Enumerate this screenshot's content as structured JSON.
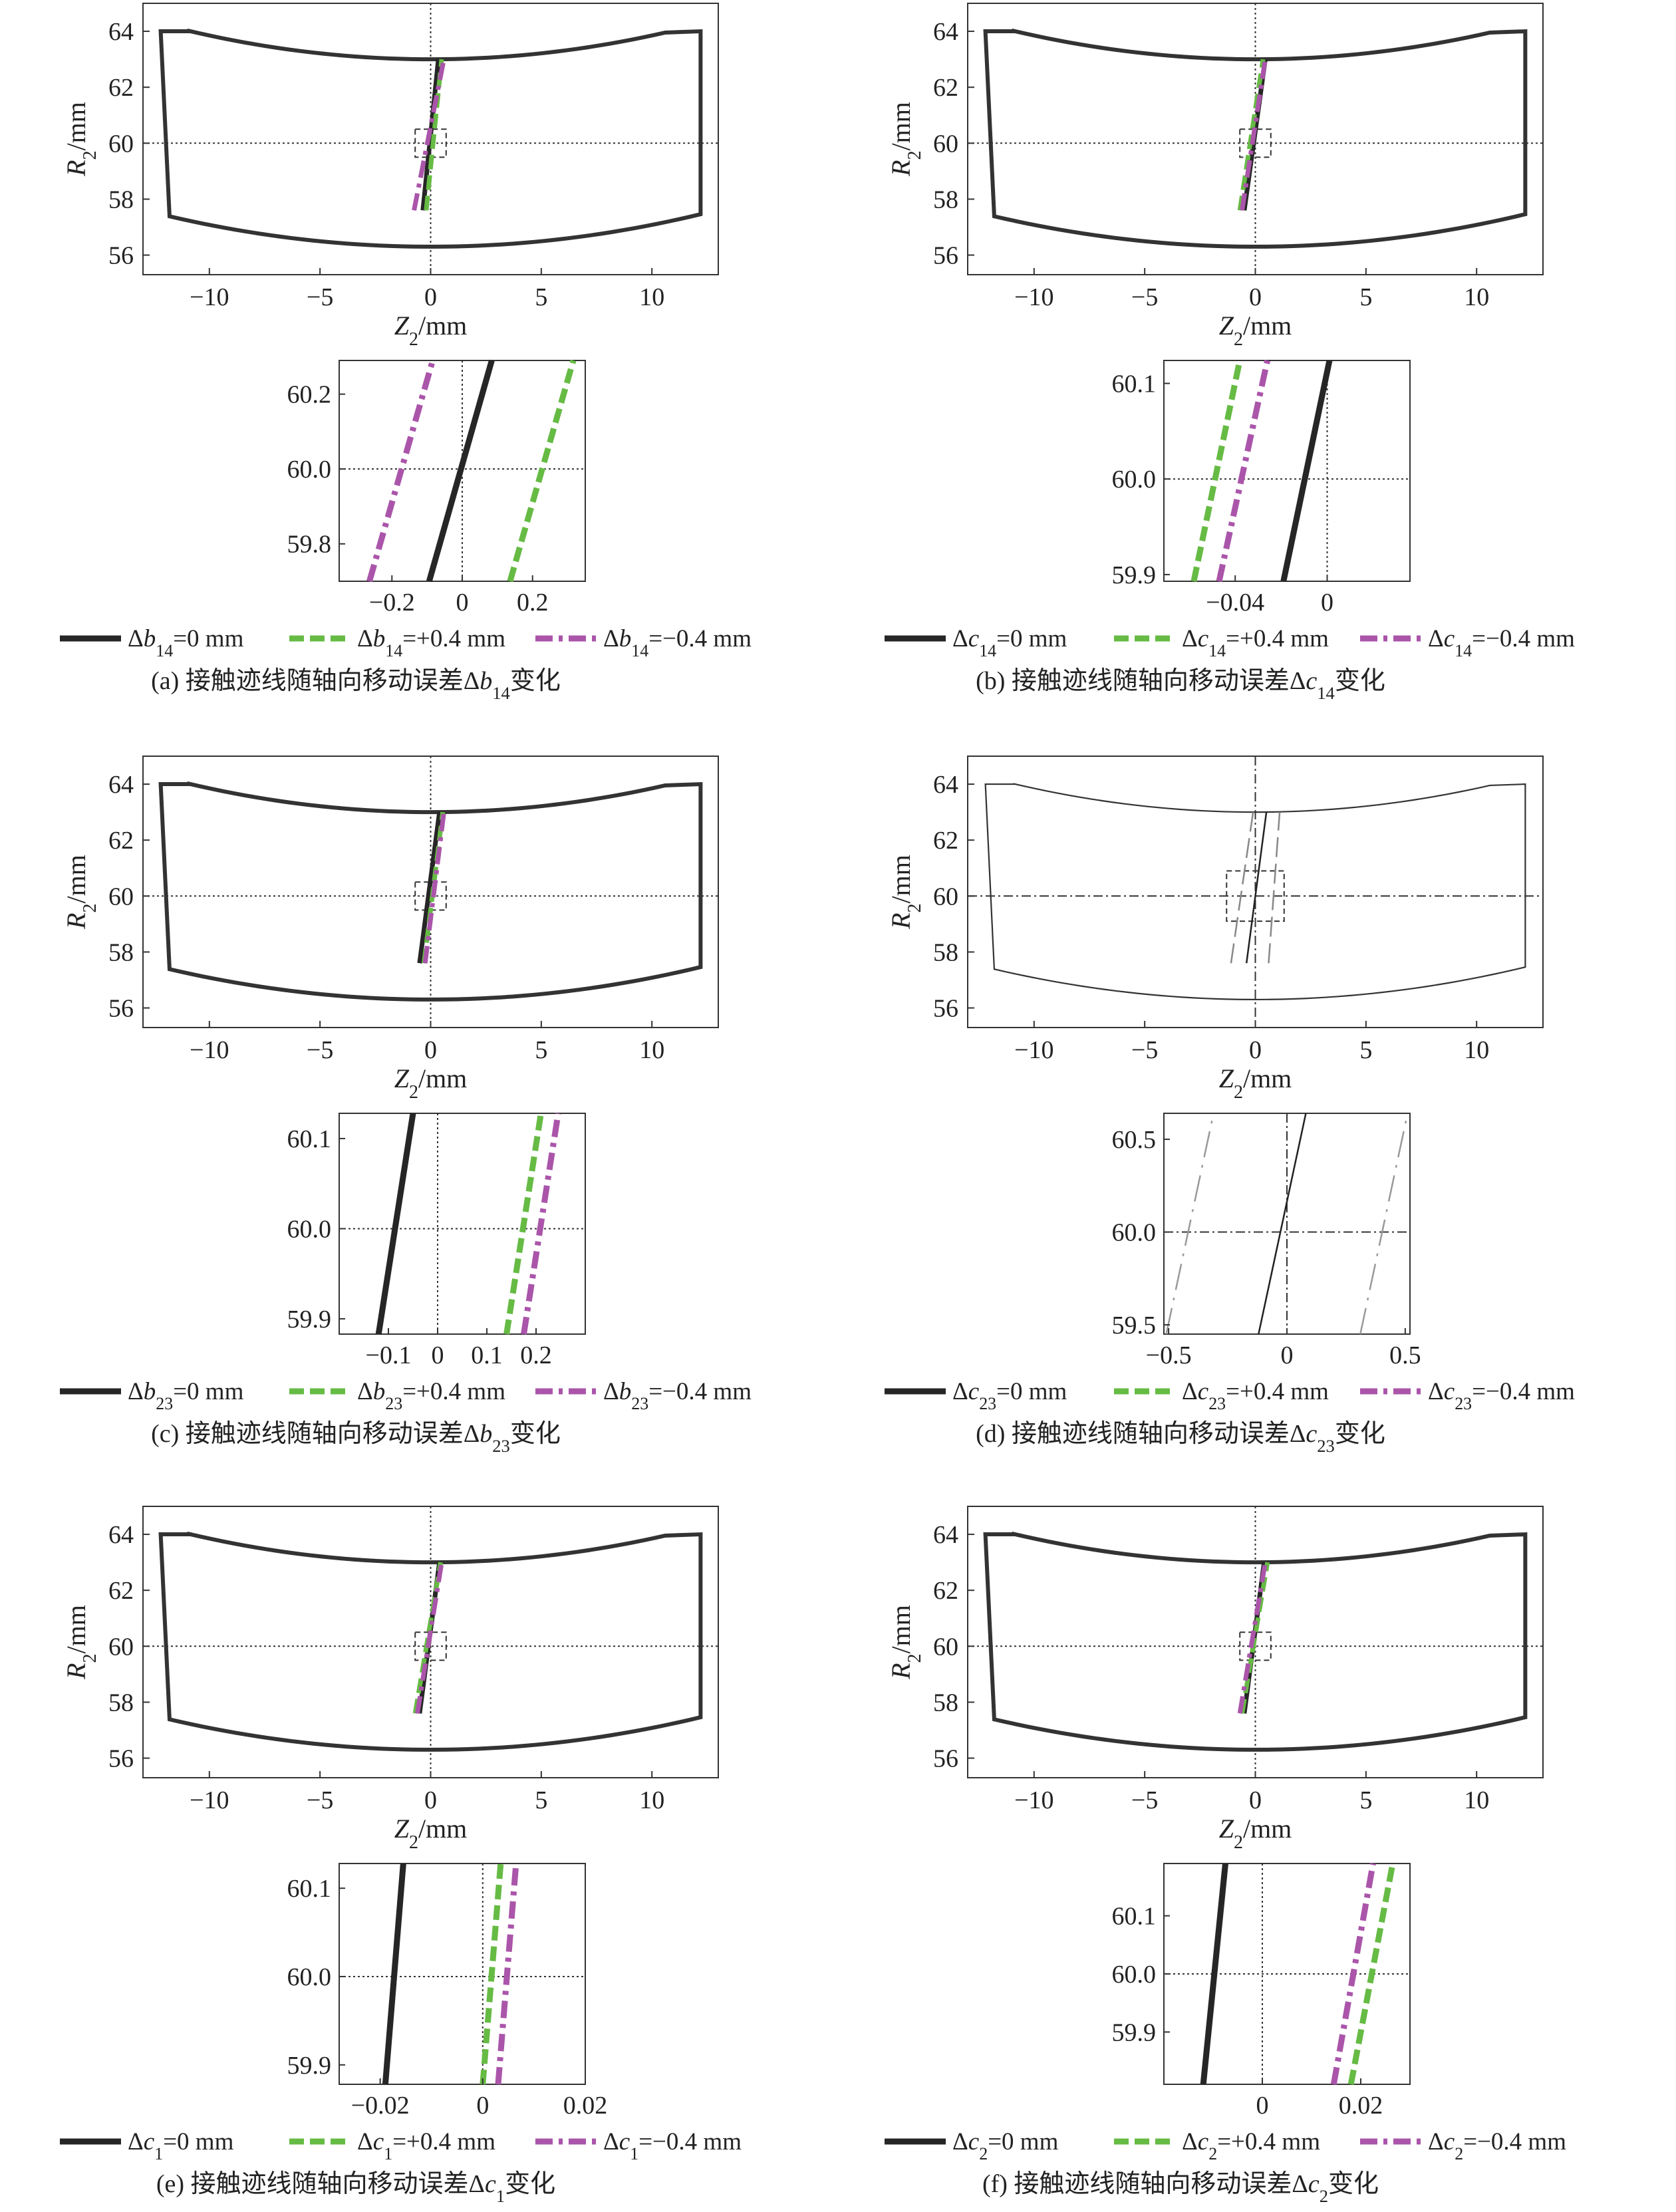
{
  "colors": {
    "nominal": "#262626",
    "plus": "#66bb44",
    "minus": "#aa55aa",
    "frame": "#333333"
  },
  "axis_labels": {
    "R": "R",
    "R_sub": "2",
    "R_unit": "/mm",
    "Z": "Z",
    "Z_sub": "2",
    "Z_unit": "/mm"
  },
  "legend_values": {
    "nominal": "=0 mm",
    "plus": "=+0.4 mm",
    "minus": "=−0.4 mm"
  },
  "caption_text": {
    "prefix": "接触迹线随轴向移动误差",
    "suffix": "变化"
  },
  "chart_data": [
    {
      "type": "line",
      "panel": "a",
      "symbol": "Δb",
      "sym_sub": "14",
      "caption_label": "(a)",
      "xlabel": "Z2/mm",
      "ylabel": "R2/mm",
      "main": {
        "xlim": [
          -13,
          13
        ],
        "ylim": [
          55.3,
          65
        ],
        "xticks": [
          "−10",
          "−5",
          "0",
          "5",
          "10"
        ],
        "yticks": [
          "56",
          "58",
          "60",
          "62",
          "64"
        ],
        "series": [
          {
            "key": "nominal",
            "x": [
              -0.35,
              0.35
            ],
            "y": [
              57.6,
              63
            ]
          },
          {
            "key": "plus",
            "x": [
              -0.2,
              0.5
            ],
            "y": [
              57.6,
              63
            ]
          },
          {
            "key": "minus",
            "x": [
              -0.75,
              0.6
            ],
            "y": [
              57.6,
              63
            ]
          }
        ]
      },
      "zoom": {
        "xlim": [
          -0.35,
          0.35
        ],
        "ylim": [
          59.7,
          60.29
        ],
        "xticks": [
          -0.2,
          0,
          0.2
        ],
        "yticks": [
          59.8,
          60.0,
          60.2
        ],
        "xticklabels": [
          "−0.2",
          "0",
          "0.2"
        ],
        "yticklabels": [
          "59.8",
          "60.0",
          "60.2"
        ],
        "series": [
          {
            "key": "nominal",
            "x": [
              -0.094,
              0.084
            ],
            "y": [
              59.7,
              60.29
            ]
          },
          {
            "key": "plus",
            "x": [
              0.136,
              0.316
            ],
            "y": [
              59.7,
              60.29
            ]
          },
          {
            "key": "minus",
            "x": [
              -0.264,
              -0.084
            ],
            "y": [
              59.7,
              60.29
            ]
          }
        ]
      }
    },
    {
      "type": "line",
      "panel": "b",
      "symbol": "Δc",
      "sym_sub": "14",
      "caption_label": "(b)",
      "xlabel": "Z2/mm",
      "ylabel": "R2/mm",
      "main": {
        "xlim": [
          -13,
          13
        ],
        "ylim": [
          55.3,
          65
        ],
        "xticks": [
          "−10",
          "−5",
          "0",
          "5",
          "10"
        ],
        "yticks": [
          "56",
          "58",
          "60",
          "62",
          "64"
        ],
        "series": [
          {
            "key": "nominal",
            "x": [
              -0.5,
              0.45
            ],
            "y": [
              57.6,
              63
            ]
          },
          {
            "key": "plus",
            "x": [
              -0.7,
              0.35
            ],
            "y": [
              57.6,
              63
            ]
          },
          {
            "key": "minus",
            "x": [
              -0.6,
              0.45
            ],
            "y": [
              57.6,
              63
            ]
          }
        ]
      },
      "zoom": {
        "xlim": [
          -0.071,
          0.036
        ],
        "ylim": [
          59.893,
          60.124
        ],
        "xticks": [
          -0.04,
          0
        ],
        "yticks": [
          59.9,
          60.0,
          60.1
        ],
        "xticklabels": [
          "−0.04",
          "0"
        ],
        "yticklabels": [
          "59.9",
          "60.0",
          "60.1"
        ],
        "series": [
          {
            "key": "nominal",
            "x": [
              -0.019,
              0.001
            ],
            "y": [
              59.893,
              60.124
            ]
          },
          {
            "key": "plus",
            "x": [
              -0.058,
              -0.038
            ],
            "y": [
              59.893,
              60.124
            ]
          },
          {
            "key": "minus",
            "x": [
              -0.047,
              -0.026
            ],
            "y": [
              59.893,
              60.124
            ]
          }
        ]
      }
    },
    {
      "type": "line",
      "panel": "c",
      "symbol": "Δb",
      "sym_sub": "23",
      "caption_label": "(c)",
      "xlabel": "Z2/mm",
      "ylabel": "R2/mm",
      "main": {
        "xlim": [
          -13,
          13
        ],
        "ylim": [
          55.3,
          65
        ],
        "xticks": [
          "−10",
          "−5",
          "0",
          "5",
          "10"
        ],
        "yticks": [
          "56",
          "58",
          "60",
          "62",
          "64"
        ],
        "series": [
          {
            "key": "nominal",
            "x": [
              -0.5,
              0.4
            ],
            "y": [
              57.6,
              63
            ]
          },
          {
            "key": "plus",
            "x": [
              -0.3,
              0.55
            ],
            "y": [
              57.6,
              63
            ]
          },
          {
            "key": "minus",
            "x": [
              -0.25,
              0.6
            ],
            "y": [
              57.6,
              63
            ]
          }
        ]
      },
      "zoom": {
        "xlim": [
          -0.2,
          0.3
        ],
        "ylim": [
          59.883,
          60.128
        ],
        "xticks": [
          -0.1,
          0,
          0.1,
          0.2
        ],
        "yticks": [
          59.9,
          60.0,
          60.1
        ],
        "xticklabels": [
          "−0.1",
          "0",
          "0.1",
          "0.2"
        ],
        "yticklabels": [
          "59.9",
          "60.0",
          "60.1"
        ],
        "series": [
          {
            "key": "nominal",
            "x": [
              -0.12,
              -0.05
            ],
            "y": [
              59.883,
              60.128
            ]
          },
          {
            "key": "plus",
            "x": [
              0.14,
              0.21
            ],
            "y": [
              59.883,
              60.128
            ]
          },
          {
            "key": "minus",
            "x": [
              0.175,
              0.245
            ],
            "y": [
              59.883,
              60.128
            ]
          }
        ]
      }
    },
    {
      "type": "line",
      "panel": "d",
      "symbol": "Δc",
      "sym_sub": "23",
      "caption_label": "(d)",
      "xlabel": "Z2/mm",
      "ylabel": "R2/mm",
      "style": "thin-grayscale",
      "main": {
        "xlim": [
          -13,
          13
        ],
        "ylim": [
          55.3,
          65
        ],
        "xticks": [
          "−10",
          "−5",
          "0",
          "5",
          "10"
        ],
        "yticks": [
          "56",
          "58",
          "60",
          "62",
          "64"
        ],
        "series": [
          {
            "key": "nominal",
            "x": [
              -0.4,
              0.5
            ],
            "y": [
              57.6,
              63
            ]
          },
          {
            "key": "plus",
            "x": [
              0.6,
              1.1
            ],
            "y": [
              57.6,
              63
            ]
          },
          {
            "key": "minus",
            "x": [
              -1.1,
              -0.1
            ],
            "y": [
              57.6,
              63
            ]
          }
        ]
      },
      "zoom": {
        "xlim": [
          -0.52,
          0.52
        ],
        "ylim": [
          59.45,
          60.64
        ],
        "xticks": [
          -0.5,
          0,
          0.5
        ],
        "yticks": [
          59.5,
          60.0,
          60.5
        ],
        "xticklabels": [
          "−0.5",
          "0",
          "0.5"
        ],
        "yticklabels": [
          "59.5",
          "60.0",
          "60.5"
        ],
        "series": [
          {
            "key": "nominal",
            "x": [
              -0.12,
              0.08
            ],
            "y": [
              59.45,
              60.64
            ]
          },
          {
            "key": "plus",
            "x": [
              0.31,
              0.51
            ],
            "y": [
              59.45,
              60.64
            ]
          },
          {
            "key": "minus",
            "x": [
              -0.51,
              -0.31
            ],
            "y": [
              59.45,
              60.64
            ]
          }
        ]
      }
    },
    {
      "type": "line",
      "panel": "e",
      "symbol": "Δc",
      "sym_sub": "1",
      "caption_label": "(e)",
      "xlabel": "Z2/mm",
      "ylabel": "R2/mm",
      "main": {
        "xlim": [
          -13,
          13
        ],
        "ylim": [
          55.3,
          65
        ],
        "xticks": [
          "−10",
          "−5",
          "0",
          "5",
          "10"
        ],
        "yticks": [
          "56",
          "58",
          "60",
          "62",
          "64"
        ],
        "series": [
          {
            "key": "nominal",
            "x": [
              -0.5,
              0.4
            ],
            "y": [
              57.6,
              63
            ]
          },
          {
            "key": "plus",
            "x": [
              -0.7,
              0.45
            ],
            "y": [
              57.6,
              63
            ]
          },
          {
            "key": "minus",
            "x": [
              -0.6,
              0.5
            ],
            "y": [
              57.6,
              63
            ]
          }
        ]
      },
      "zoom": {
        "xlim": [
          -0.028,
          0.02
        ],
        "ylim": [
          59.878,
          60.128
        ],
        "xticks": [
          -0.02,
          0,
          0.02
        ],
        "yticks": [
          59.9,
          60.0,
          60.1
        ],
        "xticklabels": [
          "−0.02",
          "0",
          "0.02"
        ],
        "yticklabels": [
          "59.9",
          "60.0",
          "60.1"
        ],
        "series": [
          {
            "key": "nominal",
            "x": [
              -0.019,
              -0.0155
            ],
            "y": [
              59.878,
              60.128
            ]
          },
          {
            "key": "plus",
            "x": [
              0.0,
              0.0035
            ],
            "y": [
              59.878,
              60.128
            ]
          },
          {
            "key": "minus",
            "x": [
              0.003,
              0.0065
            ],
            "y": [
              59.878,
              60.128
            ]
          }
        ]
      }
    },
    {
      "type": "line",
      "panel": "f",
      "symbol": "Δc",
      "sym_sub": "2",
      "caption_label": "(f)",
      "xlabel": "Z2/mm",
      "ylabel": "R2/mm",
      "main": {
        "xlim": [
          -13,
          13
        ],
        "ylim": [
          55.3,
          65
        ],
        "xticks": [
          "−10",
          "−5",
          "0",
          "5",
          "10"
        ],
        "yticks": [
          "56",
          "58",
          "60",
          "62",
          "64"
        ],
        "series": [
          {
            "key": "nominal",
            "x": [
              -0.5,
              0.4
            ],
            "y": [
              57.6,
              63
            ]
          },
          {
            "key": "plus",
            "x": [
              -0.6,
              0.55
            ],
            "y": [
              57.6,
              63
            ]
          },
          {
            "key": "minus",
            "x": [
              -0.7,
              0.45
            ],
            "y": [
              57.6,
              63
            ]
          }
        ]
      },
      "zoom": {
        "xlim": [
          -0.02,
          0.03
        ],
        "ylim": [
          59.81,
          60.19
        ],
        "xticks": [
          0,
          0.02
        ],
        "yticks": [
          59.9,
          60.0,
          60.1
        ],
        "xticklabels": [
          "0",
          "0.02"
        ],
        "yticklabels": [
          "59.9",
          "60.0",
          "60.1"
        ],
        "series": [
          {
            "key": "nominal",
            "x": [
              -0.012,
              -0.0075
            ],
            "y": [
              59.81,
              60.19
            ]
          },
          {
            "key": "plus",
            "x": [
              0.018,
              0.0265
            ],
            "y": [
              59.81,
              60.19
            ]
          },
          {
            "key": "minus",
            "x": [
              0.0145,
              0.0225
            ],
            "y": [
              59.81,
              60.19
            ]
          }
        ]
      }
    }
  ]
}
